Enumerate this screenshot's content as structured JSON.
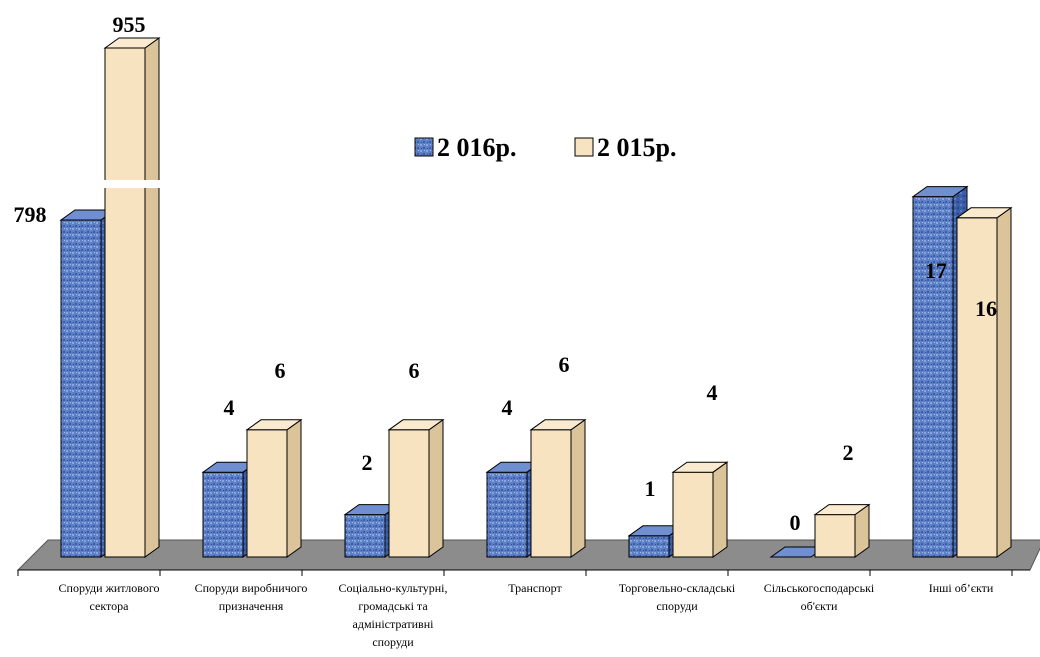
{
  "chart_data": {
    "type": "bar",
    "style": "3d-clustered-column-broken-axis",
    "categories": [
      [
        "Споруди житлового",
        "сектора"
      ],
      [
        "Споруди  виробничого",
        "призначення"
      ],
      [
        "Соціально-культурні,",
        "громадські та",
        "адміністративні",
        "споруди"
      ],
      [
        "Транспорт"
      ],
      [
        "Торговельно-складські",
        "споруди"
      ],
      [
        "Сільськогосподарські",
        "об'єкти"
      ],
      [
        "Інші об’єкти"
      ]
    ],
    "series": [
      {
        "name": "2 016р.",
        "values": [
          798,
          4,
          2,
          4,
          1,
          0,
          17
        ],
        "labels": [
          "798",
          "4",
          "2",
          "4",
          "1",
          "0",
          "17"
        ]
      },
      {
        "name": "2 015р.",
        "values": [
          955,
          6,
          6,
          6,
          4,
          2,
          16
        ],
        "labels": [
          "955",
          "6",
          "6",
          "6",
          "4",
          "2",
          "16"
        ]
      }
    ],
    "legend": {
      "position": "top-center",
      "items": [
        "2 016р.",
        "2 015р."
      ]
    },
    "colors": {
      "2016": "#5b7fc9",
      "2016_dark": "#2b4a96",
      "2015": "#f7e3bf",
      "2015_side": "#dcc49a",
      "floor": "#8c8c8c"
    },
    "axis_break": true,
    "grid": false
  }
}
